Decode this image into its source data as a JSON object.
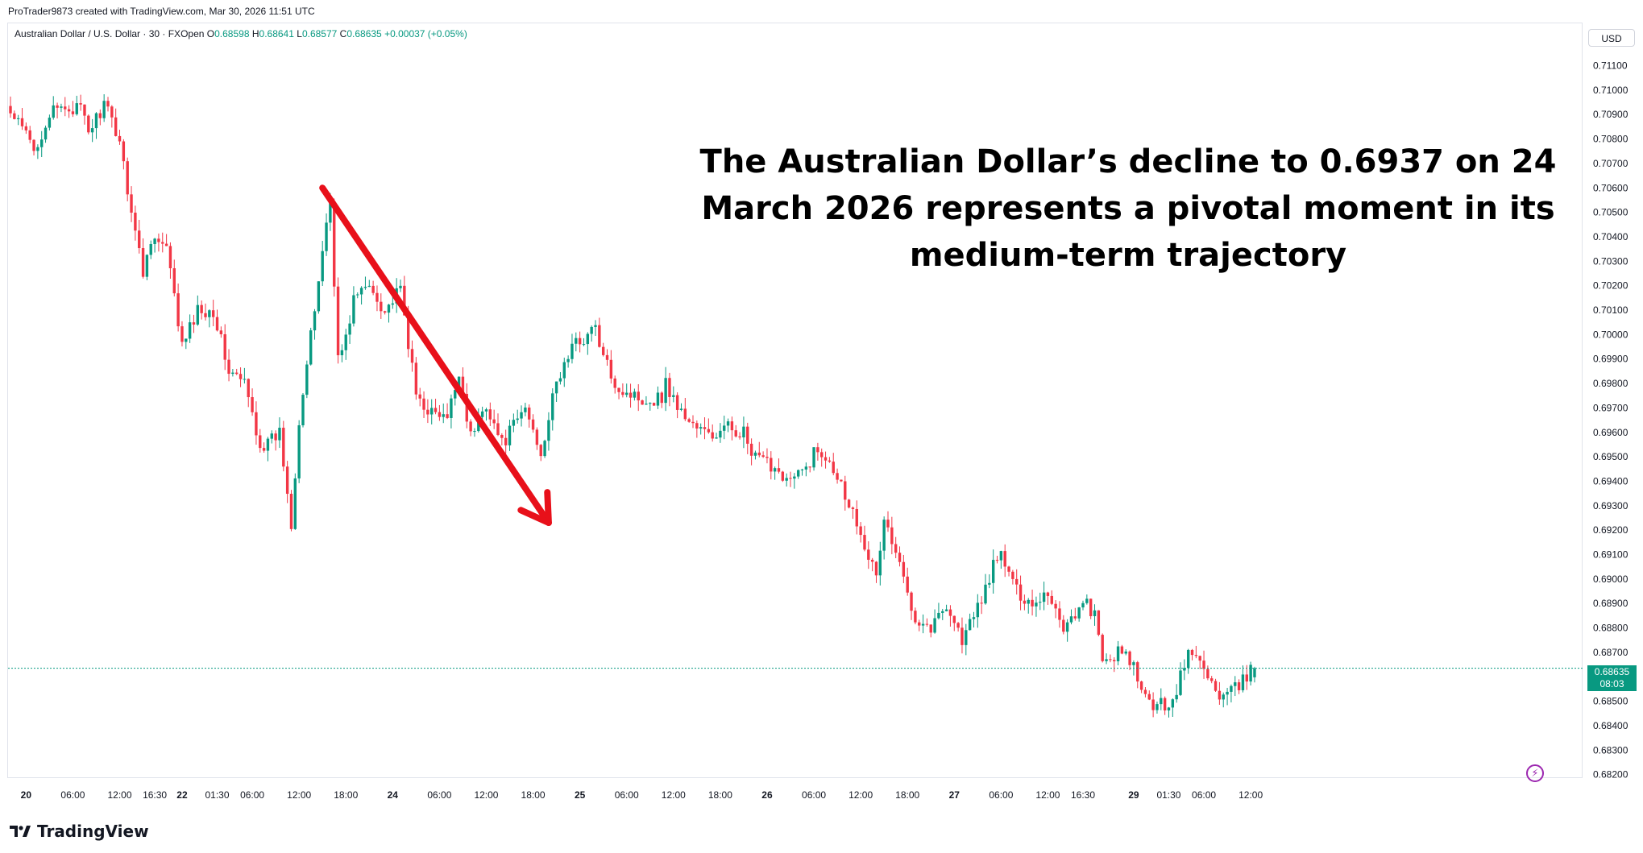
{
  "credit": "ProTrader9873 created with TradingView.com, Mar 30, 2026 11:51 UTC",
  "legend": {
    "symbol": "Australian Dollar / U.S. Dollar · 30 · FXOpen",
    "o_label": "O",
    "o": "0.68598",
    "h_label": "H",
    "h": "0.68641",
    "l_label": "L",
    "l": "0.68577",
    "c_label": "C",
    "c": "0.68635",
    "change": "+0.00037 (+0.05%)"
  },
  "currency": "USD",
  "annotation": "The Australian Dollar’s decline to 0.6937 on 24 March 2026 represents a pivotal moment in its medium-term trajectory",
  "brand": "TradingView",
  "price_tag": {
    "price": "0.68635",
    "countdown": "08:03"
  },
  "icons": {
    "alert": "lightning-alert-icon",
    "logo": "tradingview-logo-icon"
  },
  "colors": {
    "up": "#089981",
    "down": "#f23645",
    "arrow": "#e8101a",
    "current_line": "#089981"
  },
  "chart_data": {
    "type": "candlestick",
    "symbol": "AUDUSD",
    "timeframe": "30",
    "ylim": [
      0.6818,
      0.7118
    ],
    "y_ticks": [
      "0.71100",
      "0.71000",
      "0.70900",
      "0.70800",
      "0.70700",
      "0.70600",
      "0.70500",
      "0.70400",
      "0.70300",
      "0.70200",
      "0.70100",
      "0.70000",
      "0.69900",
      "0.69800",
      "0.69700",
      "0.69600",
      "0.69500",
      "0.69400",
      "0.69300",
      "0.69200",
      "0.69100",
      "0.69000",
      "0.68900",
      "0.68800",
      "0.68700",
      "0.68600",
      "0.68500",
      "0.68400",
      "0.68300",
      "0.68200"
    ],
    "x_ticks": [
      {
        "label": "20",
        "bar": 4,
        "bold": true
      },
      {
        "label": "06:00",
        "bar": 16
      },
      {
        "label": "12:00",
        "bar": 28
      },
      {
        "label": "16:30",
        "bar": 37
      },
      {
        "label": "22",
        "bar": 44,
        "bold": true
      },
      {
        "label": "01:30",
        "bar": 53
      },
      {
        "label": "06:00",
        "bar": 62
      },
      {
        "label": "12:00",
        "bar": 74
      },
      {
        "label": "18:00",
        "bar": 86
      },
      {
        "label": "24",
        "bar": 98,
        "bold": true
      },
      {
        "label": "06:00",
        "bar": 110
      },
      {
        "label": "12:00",
        "bar": 122
      },
      {
        "label": "18:00",
        "bar": 134
      },
      {
        "label": "25",
        "bar": 146,
        "bold": true
      },
      {
        "label": "06:00",
        "bar": 158
      },
      {
        "label": "12:00",
        "bar": 170
      },
      {
        "label": "18:00",
        "bar": 182
      },
      {
        "label": "26",
        "bar": 194,
        "bold": true
      },
      {
        "label": "06:00",
        "bar": 206
      },
      {
        "label": "12:00",
        "bar": 218
      },
      {
        "label": "18:00",
        "bar": 230
      },
      {
        "label": "27",
        "bar": 242,
        "bold": true
      },
      {
        "label": "06:00",
        "bar": 254
      },
      {
        "label": "12:00",
        "bar": 266
      },
      {
        "label": "16:30",
        "bar": 275
      },
      {
        "label": "29",
        "bar": 288,
        "bold": true
      },
      {
        "label": "01:30",
        "bar": 297
      },
      {
        "label": "06:00",
        "bar": 306
      },
      {
        "label": "12:00",
        "bar": 318
      }
    ],
    "anchors": [
      [
        0,
        0.709
      ],
      [
        4,
        0.7082
      ],
      [
        6,
        0.7075
      ],
      [
        10,
        0.709
      ],
      [
        14,
        0.7093
      ],
      [
        18,
        0.7092
      ],
      [
        20,
        0.7083
      ],
      [
        24,
        0.7094
      ],
      [
        28,
        0.708
      ],
      [
        30,
        0.706
      ],
      [
        34,
        0.7025
      ],
      [
        36,
        0.704
      ],
      [
        40,
        0.7035
      ],
      [
        44,
        0.6995
      ],
      [
        48,
        0.701
      ],
      [
        52,
        0.701
      ],
      [
        56,
        0.6985
      ],
      [
        60,
        0.698
      ],
      [
        64,
        0.6955
      ],
      [
        66,
        0.6955
      ],
      [
        69,
        0.696
      ],
      [
        72,
        0.6923
      ],
      [
        74,
        0.6965
      ],
      [
        78,
        0.701
      ],
      [
        80,
        0.7035
      ],
      [
        82,
        0.7055
      ],
      [
        84,
        0.699
      ],
      [
        86,
        0.6998
      ],
      [
        88,
        0.7015
      ],
      [
        92,
        0.702
      ],
      [
        96,
        0.701
      ],
      [
        100,
        0.7018
      ],
      [
        104,
        0.6975
      ],
      [
        108,
        0.6968
      ],
      [
        112,
        0.6965
      ],
      [
        115,
        0.6985
      ],
      [
        118,
        0.6958
      ],
      [
        122,
        0.6972
      ],
      [
        126,
        0.6955
      ],
      [
        128,
        0.696
      ],
      [
        132,
        0.697
      ],
      [
        136,
        0.6952
      ],
      [
        140,
        0.698
      ],
      [
        144,
        0.6995
      ],
      [
        148,
        0.7
      ],
      [
        150,
        0.7003
      ],
      [
        152,
        0.699
      ],
      [
        156,
        0.6978
      ],
      [
        160,
        0.6975
      ],
      [
        164,
        0.6973
      ],
      [
        167,
        0.6975
      ],
      [
        168,
        0.698
      ],
      [
        172,
        0.6968
      ],
      [
        176,
        0.6962
      ],
      [
        180,
        0.6958
      ],
      [
        184,
        0.6962
      ],
      [
        188,
        0.696
      ],
      [
        190,
        0.695
      ],
      [
        196,
        0.6946
      ],
      [
        200,
        0.694
      ],
      [
        204,
        0.6945
      ],
      [
        206,
        0.6952
      ],
      [
        210,
        0.695
      ],
      [
        214,
        0.6935
      ],
      [
        218,
        0.692
      ],
      [
        222,
        0.69
      ],
      [
        224,
        0.6925
      ],
      [
        228,
        0.6905
      ],
      [
        232,
        0.6885
      ],
      [
        236,
        0.688
      ],
      [
        240,
        0.689
      ],
      [
        244,
        0.6875
      ],
      [
        248,
        0.6888
      ],
      [
        252,
        0.6905
      ],
      [
        254,
        0.691
      ],
      [
        258,
        0.6895
      ],
      [
        262,
        0.689
      ],
      [
        266,
        0.6895
      ],
      [
        270,
        0.688
      ],
      [
        272,
        0.6885
      ],
      [
        276,
        0.689
      ],
      [
        278,
        0.6885
      ],
      [
        280,
        0.6865
      ],
      [
        284,
        0.687
      ],
      [
        288,
        0.6865
      ],
      [
        290,
        0.6852
      ],
      [
        294,
        0.6848
      ],
      [
        298,
        0.685
      ],
      [
        300,
        0.686
      ],
      [
        302,
        0.687
      ],
      [
        306,
        0.6865
      ],
      [
        310,
        0.685
      ],
      [
        314,
        0.6855
      ],
      [
        317,
        0.686
      ],
      [
        319,
        0.6864
      ]
    ],
    "current_price": 0.68635,
    "trend_arrow": {
      "from": {
        "bar": 80,
        "price": 0.706
      },
      "to": {
        "bar": 138,
        "price": 0.6923
      }
    },
    "ohlc_last": {
      "open": 0.68598,
      "high": 0.68641,
      "low": 0.68577,
      "close": 0.68635
    }
  }
}
